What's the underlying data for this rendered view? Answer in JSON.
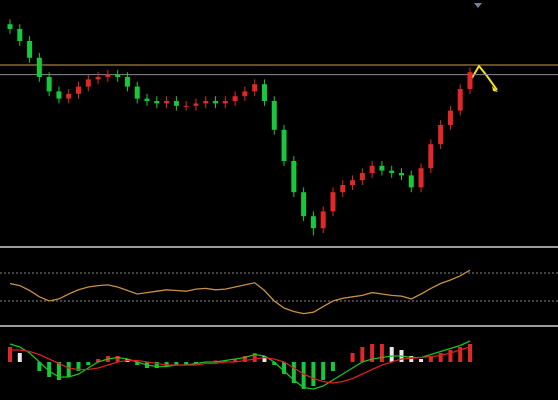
{
  "chart_data": [
    {
      "type": "candlestick",
      "ylim": [
        0,
        100
      ],
      "open": [
        92,
        90,
        85,
        78,
        70,
        64,
        61,
        63,
        66,
        69,
        70,
        71,
        70,
        66,
        61,
        60,
        59,
        60,
        58,
        58,
        59,
        60,
        59,
        60,
        62,
        64,
        67,
        60,
        48,
        35,
        22,
        12,
        7,
        14,
        22,
        25,
        27,
        30,
        33,
        31,
        30,
        29,
        24,
        32,
        42,
        50,
        56,
        65
      ],
      "high": [
        94,
        92,
        87,
        80,
        72,
        66,
        65,
        68,
        71,
        72,
        73,
        73,
        72,
        68,
        63,
        62,
        62,
        62,
        60,
        61,
        62,
        62,
        62,
        64,
        66,
        69,
        69,
        62,
        50,
        37,
        24,
        14,
        16,
        24,
        27,
        29,
        32,
        35,
        35,
        33,
        32,
        31,
        34,
        44,
        52,
        58,
        67,
        74
      ],
      "low": [
        88,
        83,
        76,
        68,
        62,
        59,
        59,
        61,
        64,
        67,
        68,
        68,
        64,
        59,
        58,
        57,
        57,
        56,
        56,
        56,
        57,
        57,
        57,
        58,
        60,
        62,
        58,
        46,
        33,
        20,
        10,
        4,
        5,
        12,
        20,
        23,
        25,
        28,
        29,
        28,
        27,
        22,
        22,
        30,
        40,
        48,
        54,
        63
      ],
      "close": [
        90,
        85,
        78,
        70,
        64,
        61,
        63,
        66,
        69,
        70,
        71,
        70,
        66,
        61,
        60,
        59,
        60,
        58,
        58,
        59,
        60,
        59,
        60,
        62,
        64,
        67,
        60,
        48,
        35,
        22,
        12,
        7,
        14,
        22,
        25,
        27,
        30,
        33,
        31,
        30,
        29,
        24,
        32,
        42,
        50,
        56,
        65,
        72
      ],
      "up_color": "#e02828",
      "down_color": "#18c83c",
      "hlines": [
        {
          "value": 75,
          "color": "#c8a040"
        },
        {
          "value": 71,
          "color": "#8a8a8a"
        }
      ]
    },
    {
      "type": "line",
      "ylim": [
        0,
        100
      ],
      "color": "#c89040",
      "values": [
        55,
        52,
        45,
        36,
        30,
        33,
        40,
        46,
        50,
        52,
        53,
        50,
        45,
        40,
        42,
        44,
        46,
        45,
        44,
        47,
        48,
        46,
        47,
        50,
        53,
        56,
        45,
        30,
        20,
        15,
        12,
        14,
        22,
        30,
        34,
        36,
        38,
        42,
        40,
        38,
        37,
        33,
        40,
        48,
        55,
        60,
        66,
        74
      ],
      "hlines": [
        {
          "value": 70,
          "color": "#888888"
        },
        {
          "value": 30,
          "color": "#888888"
        }
      ]
    },
    {
      "type": "macd",
      "ylim": [
        -1,
        1
      ],
      "bars": {
        "values": [
          0.5,
          0.3,
          0.0,
          -0.3,
          -0.5,
          -0.6,
          -0.5,
          -0.3,
          -0.1,
          0.1,
          0.2,
          0.2,
          0.1,
          -0.1,
          -0.2,
          -0.2,
          -0.15,
          -0.1,
          -0.1,
          -0.05,
          0.0,
          0.05,
          0.05,
          0.1,
          0.2,
          0.3,
          0.2,
          -0.1,
          -0.4,
          -0.7,
          -0.9,
          -0.8,
          -0.6,
          -0.3,
          0.0,
          0.3,
          0.5,
          0.6,
          0.6,
          0.5,
          0.4,
          0.2,
          0.1,
          0.2,
          0.3,
          0.4,
          0.5,
          0.6
        ],
        "positive_color": "#e02828",
        "negative_color": "#18c83c",
        "falling_color": "#e8e8e8"
      },
      "series": [
        {
          "color": "#20c020",
          "values": [
            0.6,
            0.5,
            0.3,
            0.0,
            -0.3,
            -0.5,
            -0.5,
            -0.4,
            -0.2,
            0.0,
            0.1,
            0.15,
            0.1,
            0.0,
            -0.1,
            -0.15,
            -0.15,
            -0.1,
            -0.1,
            -0.05,
            0.0,
            0.0,
            0.05,
            0.1,
            0.15,
            0.25,
            0.2,
            0.0,
            -0.3,
            -0.6,
            -0.85,
            -0.9,
            -0.8,
            -0.6,
            -0.4,
            -0.2,
            0.0,
            0.1,
            0.15,
            0.2,
            0.2,
            0.15,
            0.15,
            0.25,
            0.35,
            0.45,
            0.55,
            0.7
          ]
        },
        {
          "color": "#d82020",
          "values": [
            0.4,
            0.4,
            0.35,
            0.25,
            0.1,
            -0.05,
            -0.2,
            -0.25,
            -0.25,
            -0.2,
            -0.1,
            0.0,
            0.05,
            0.05,
            0.0,
            -0.05,
            -0.1,
            -0.1,
            -0.1,
            -0.1,
            -0.05,
            -0.05,
            0.0,
            0.0,
            0.05,
            0.1,
            0.15,
            0.1,
            0.0,
            -0.2,
            -0.4,
            -0.55,
            -0.65,
            -0.7,
            -0.65,
            -0.55,
            -0.4,
            -0.25,
            -0.1,
            0.0,
            0.1,
            0.12,
            0.15,
            0.18,
            0.22,
            0.3,
            0.4,
            0.5
          ]
        }
      ]
    }
  ]
}
